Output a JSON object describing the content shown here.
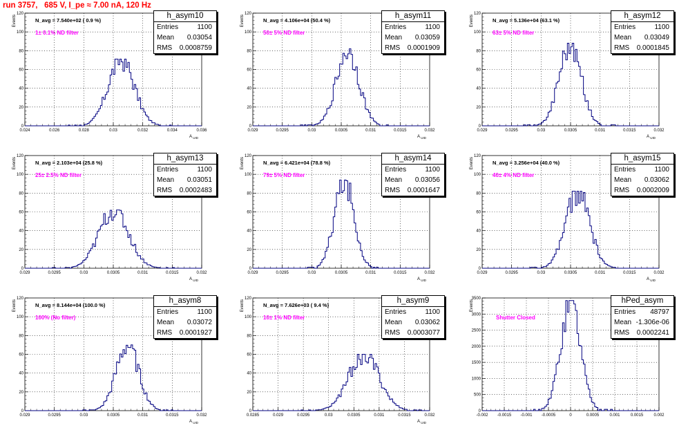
{
  "header": {
    "title": "run 3757,   685 V, I_pe ≈ 7.00 nA, 120 Hz"
  },
  "style": {
    "histogram_color": "#000080",
    "grid_color": "#000000",
    "title_color": "#ff0000",
    "filter_color": "#ff00ff"
  },
  "chart_data": [
    {
      "type": "histogram",
      "name": "h_asym10",
      "navg_text": "N_avg = 7.540e+02 ( 0.9 %)",
      "filter_text": "1± 0.1% ND filter",
      "stats": {
        "entries": "1100",
        "mean": "0.03054",
        "rms": "0.0008759"
      },
      "ylabel": "Events",
      "xlabel": "A_UID",
      "xlim": [
        0.024,
        0.036
      ],
      "ylim": [
        0,
        120
      ],
      "xticks": [
        "0.024",
        "0.026",
        "0.028",
        "0.03",
        "0.032",
        "0.034",
        "0.036"
      ],
      "yticks": [
        "0",
        "20",
        "40",
        "60",
        "80",
        "100",
        "120"
      ],
      "grid": true,
      "peak": {
        "mean": 0.03054,
        "sigma": 0.00088,
        "max": 71
      }
    },
    {
      "type": "histogram",
      "name": "h_asym11",
      "navg_text": "N_avg = 4.106e+04 (50.4 %)",
      "filter_text": "50± 5% ND filter",
      "stats": {
        "entries": "1100",
        "mean": "0.03059",
        "rms": "0.0001909"
      },
      "ylabel": "Events",
      "xlabel": "A_UID",
      "xlim": [
        0.029,
        0.032
      ],
      "ylim": [
        0,
        120
      ],
      "xticks": [
        "0.029",
        "0.0295",
        "0.03",
        "0.0305",
        "0.031",
        "0.0315",
        "0.032"
      ],
      "yticks": [
        "0",
        "20",
        "40",
        "60",
        "80",
        "100",
        "120"
      ],
      "grid": true,
      "peak": {
        "mean": 0.03061,
        "sigma": 0.00019,
        "max": 82
      }
    },
    {
      "type": "histogram",
      "name": "h_asym12",
      "navg_text": "N_avg = 5.136e+04 (63.1 %)",
      "filter_text": "63± 5% ND filter",
      "stats": {
        "entries": "1100",
        "mean": "0.03049",
        "rms": "0.0001845"
      },
      "ylabel": "Events",
      "xlabel": "A_UID",
      "xlim": [
        0.029,
        0.032
      ],
      "ylim": [
        0,
        120
      ],
      "xticks": [
        "0.029",
        "0.0295",
        "0.03",
        "0.0305",
        "0.031",
        "0.0315",
        "0.032"
      ],
      "yticks": [
        "0",
        "20",
        "40",
        "60",
        "80",
        "100",
        "120"
      ],
      "grid": true,
      "peak": {
        "mean": 0.03049,
        "sigma": 0.000185,
        "max": 88
      }
    },
    {
      "type": "histogram",
      "name": "h_asym13",
      "navg_text": "N_avg = 2.103e+04 (25.8 %)",
      "filter_text": "25± 2.5% ND filter",
      "stats": {
        "entries": "1100",
        "mean": "0.03051",
        "rms": "0.0002483"
      },
      "ylabel": "Events",
      "xlabel": "A_UID",
      "xlim": [
        0.029,
        0.032
      ],
      "ylim": [
        0,
        120
      ],
      "xticks": [
        "0.029",
        "0.0295",
        "0.03",
        "0.0305",
        "0.031",
        "0.0315",
        "0.032"
      ],
      "yticks": [
        "0",
        "20",
        "40",
        "60",
        "80",
        "100",
        "120"
      ],
      "grid": true,
      "peak": {
        "mean": 0.03051,
        "sigma": 0.00025,
        "max": 62
      }
    },
    {
      "type": "histogram",
      "name": "h_asym14",
      "navg_text": "N_avg = 6.421e+04 (78.8 %)",
      "filter_text": "79± 5% ND filter",
      "stats": {
        "entries": "1100",
        "mean": "0.03056",
        "rms": "0.0001647"
      },
      "ylabel": "Events",
      "xlabel": "A_UID",
      "xlim": [
        0.029,
        0.032
      ],
      "ylim": [
        0,
        120
      ],
      "xticks": [
        "0.029",
        "0.0295",
        "0.03",
        "0.0305",
        "0.031",
        "0.0315",
        "0.032"
      ],
      "yticks": [
        "0",
        "20",
        "40",
        "60",
        "80",
        "100",
        "120"
      ],
      "grid": true,
      "peak": {
        "mean": 0.03055,
        "sigma": 0.000165,
        "max": 94
      }
    },
    {
      "type": "histogram",
      "name": "h_asym15",
      "navg_text": "N_avg = 3.256e+04 (40.0 %)",
      "filter_text": "40± 4% ND filter",
      "stats": {
        "entries": "1100",
        "mean": "0.03062",
        "rms": "0.0002009"
      },
      "ylabel": "Events",
      "xlabel": "A_UID",
      "xlim": [
        0.029,
        0.032
      ],
      "ylim": [
        0,
        120
      ],
      "xticks": [
        "0.029",
        "0.0295",
        "0.03",
        "0.0305",
        "0.031",
        "0.0315",
        "0.032"
      ],
      "yticks": [
        "0",
        "20",
        "40",
        "60",
        "80",
        "100",
        "120"
      ],
      "grid": true,
      "peak": {
        "mean": 0.03062,
        "sigma": 0.0002,
        "max": 82
      }
    },
    {
      "type": "histogram",
      "name": "h_asym8",
      "navg_text": "N_avg = 8.144e+04 (100.0 %)",
      "filter_text": "100% (No filter)",
      "stats": {
        "entries": "1100",
        "mean": "0.03072",
        "rms": "0.0001927"
      },
      "ylabel": "Events",
      "xlabel": "A_UID",
      "xlim": [
        0.029,
        0.032
      ],
      "ylim": [
        0,
        120
      ],
      "xticks": [
        "0.029",
        "0.0295",
        "0.03",
        "0.0305",
        "0.031",
        "0.0315",
        "0.032"
      ],
      "yticks": [
        "0",
        "20",
        "40",
        "60",
        "80",
        "100",
        "120"
      ],
      "grid": true,
      "peak": {
        "mean": 0.03074,
        "sigma": 0.00019,
        "max": 70
      }
    },
    {
      "type": "histogram",
      "name": "h_asym9",
      "navg_text": "N_avg = 7.626e+03 ( 9.4 %)",
      "filter_text": "10± 1% ND filter",
      "stats": {
        "entries": "1100",
        "mean": "0.03062",
        "rms": "0.0003077"
      },
      "ylabel": "Events",
      "xlabel": "A_UID",
      "xlim": [
        0.0285,
        0.032
      ],
      "ylim": [
        0,
        120
      ],
      "xticks": [
        "0.0285",
        "0.029",
        "0.0295",
        "0.03",
        "0.0305",
        "0.031",
        "0.0315",
        "0.032"
      ],
      "yticks": [
        "0",
        "20",
        "40",
        "60",
        "80",
        "100",
        "120"
      ],
      "grid": true,
      "peak": {
        "mean": 0.0307,
        "sigma": 0.0003,
        "max": 60
      }
    },
    {
      "type": "histogram",
      "name": "hPed_asym",
      "navg_text": "",
      "filter_text": "Shutter Closed",
      "stats": {
        "entries": "48797",
        "mean": "-1.306e-06",
        "rms": "0.0002241"
      },
      "ylabel": "Events",
      "xlabel": "",
      "xlim": [
        -0.002,
        0.002
      ],
      "ylim": [
        0,
        3500
      ],
      "xticks": [
        "-0.002",
        "-0.0015",
        "-0.001",
        "-0.0005",
        "0",
        "0.0005",
        "0.001",
        "0.0015",
        "0.002"
      ],
      "yticks": [
        "0",
        "500",
        "1000",
        "1500",
        "2000",
        "2500",
        "3000",
        "3500"
      ],
      "grid": true,
      "peak": {
        "mean": 0.0,
        "sigma": 0.000224,
        "max": 3420
      }
    }
  ]
}
